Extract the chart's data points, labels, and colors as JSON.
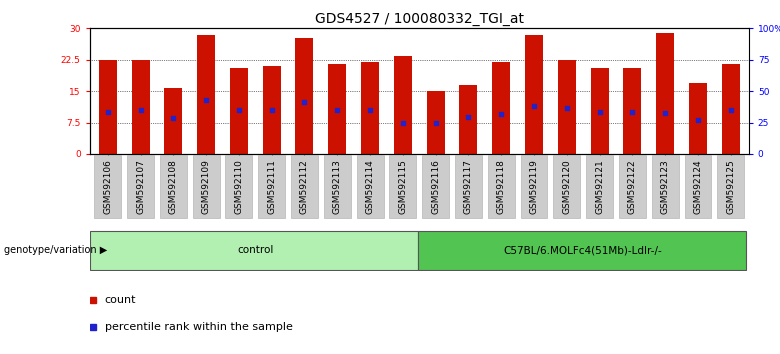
{
  "title": "GDS4527 / 100080332_TGI_at",
  "samples": [
    "GSM592106",
    "GSM592107",
    "GSM592108",
    "GSM592109",
    "GSM592110",
    "GSM592111",
    "GSM592112",
    "GSM592113",
    "GSM592114",
    "GSM592115",
    "GSM592116",
    "GSM592117",
    "GSM592118",
    "GSM592119",
    "GSM592120",
    "GSM592121",
    "GSM592122",
    "GSM592123",
    "GSM592124",
    "GSM592125"
  ],
  "counts": [
    22.5,
    22.5,
    15.8,
    28.5,
    20.5,
    21.0,
    27.8,
    21.5,
    22.0,
    23.5,
    15.0,
    16.5,
    22.0,
    28.5,
    22.5,
    20.5,
    20.5,
    29.0,
    17.0,
    21.5
  ],
  "percentile_ranks_left": [
    10.0,
    10.5,
    8.5,
    13.0,
    10.5,
    10.5,
    12.5,
    10.5,
    10.5,
    7.5,
    7.5,
    8.8,
    9.5,
    11.5,
    11.0,
    10.0,
    10.0,
    9.8,
    8.2,
    10.5
  ],
  "groups": [
    {
      "label": "control",
      "start": 0,
      "end": 10,
      "color": "#b2f0b2"
    },
    {
      "label": "C57BL/6.MOLFc4(51Mb)-Ldlr-/-",
      "start": 10,
      "end": 20,
      "color": "#52c452"
    }
  ],
  "ylim_left": [
    0,
    30
  ],
  "ylim_right": [
    0,
    100
  ],
  "yticks_left": [
    0,
    7.5,
    15,
    22.5,
    30
  ],
  "yticks_right": [
    0,
    25,
    50,
    75,
    100
  ],
  "ytick_labels_left": [
    "0",
    "7.5",
    "15",
    "22.5",
    "30"
  ],
  "ytick_labels_right": [
    "0",
    "25",
    "50",
    "75",
    "100%"
  ],
  "bar_color": "#CC1100",
  "dot_color": "#2222CC",
  "background_color": "#ffffff",
  "title_fontsize": 10,
  "tick_fontsize": 6.5,
  "legend_count_label": "count",
  "legend_pct_label": "percentile rank within the sample",
  "group_label": "genotype/variation",
  "bar_width": 0.55
}
